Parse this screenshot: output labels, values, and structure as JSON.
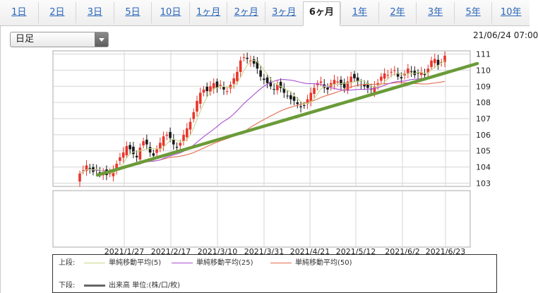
{
  "tabs": [
    {
      "label": "1日",
      "active": false
    },
    {
      "label": "2日",
      "active": false
    },
    {
      "label": "3日",
      "active": false
    },
    {
      "label": "5日",
      "active": false
    },
    {
      "label": "10日",
      "active": false
    },
    {
      "label": "1ヶ月",
      "active": false
    },
    {
      "label": "2ヶ月",
      "active": false
    },
    {
      "label": "3ヶ月",
      "active": false
    },
    {
      "label": "6ヶ月",
      "active": true
    },
    {
      "label": "1年",
      "active": false
    },
    {
      "label": "2年",
      "active": false
    },
    {
      "label": "3年",
      "active": false
    },
    {
      "label": "5年",
      "active": false
    },
    {
      "label": "10年",
      "active": false
    }
  ],
  "period_select": {
    "value": "日足"
  },
  "datetime": "21/06/24 07:00",
  "colors": {
    "up": "#e8352a",
    "down": "#1a1a1a",
    "sma5": "#c5d98a",
    "sma25": "#a94fd1",
    "sma50": "#e56b4d",
    "trendline": "#6a9b38",
    "grid": "#d4d4d4",
    "volume": "#666666"
  },
  "chart_data": {
    "type": "candlestick",
    "y_ticks": [
      103,
      104,
      105,
      106,
      107,
      108,
      109,
      110,
      111
    ],
    "ylim": [
      102.8,
      111.2
    ],
    "x_ticks": [
      "2021/1/27",
      "2021/2/17",
      "2021/3/10",
      "2021/3/31",
      "2021/4/21",
      "2021/5/12",
      "2021/6/2",
      "2021/6/23"
    ],
    "series_close": [
      103.6,
      103.8,
      104.1,
      103.9,
      103.7,
      103.8,
      103.6,
      103.7,
      103.5,
      103.6,
      103.8,
      104.2,
      104.6,
      104.9,
      105.3,
      105.1,
      104.8,
      104.6,
      105.2,
      105.6,
      105.4,
      104.9,
      104.7,
      105.1,
      105.5,
      105.9,
      106.0,
      105.8,
      105.4,
      105.2,
      105.5,
      106.0,
      106.4,
      106.8,
      107.4,
      108.1,
      108.6,
      108.8,
      108.7,
      109.0,
      109.2,
      108.9,
      109.1,
      108.8,
      108.7,
      109.1,
      109.5,
      109.9,
      110.6,
      110.8,
      110.7,
      110.6,
      110.4,
      110.1,
      109.6,
      109.4,
      109.2,
      109.0,
      108.8,
      109.1,
      108.9,
      108.6,
      108.4,
      108.2,
      108.1,
      107.9,
      107.7,
      107.8,
      108.2,
      108.6,
      108.9,
      109.2,
      109.3,
      108.9,
      108.8,
      109.2,
      109.4,
      109.3,
      109.1,
      108.9,
      109.3,
      109.6,
      109.5,
      109.3,
      109.1,
      109.0,
      108.9,
      108.8,
      109.0,
      109.2,
      109.6,
      109.8,
      109.7,
      109.9,
      110.0,
      109.6,
      109.5,
      109.8,
      110.1,
      109.9,
      109.7,
      109.8,
      109.9,
      109.7,
      110.1,
      110.6,
      110.7,
      110.3,
      110.5,
      110.9
    ],
    "legend": {
      "upper_label": "上段:",
      "lower_label": "下段:",
      "sma5": "単純移動平均(5)",
      "sma25": "単純移動平均(25)",
      "sma50": "単純移動平均(50)",
      "volume": "出来高 単位:(株/口/枚)"
    }
  }
}
